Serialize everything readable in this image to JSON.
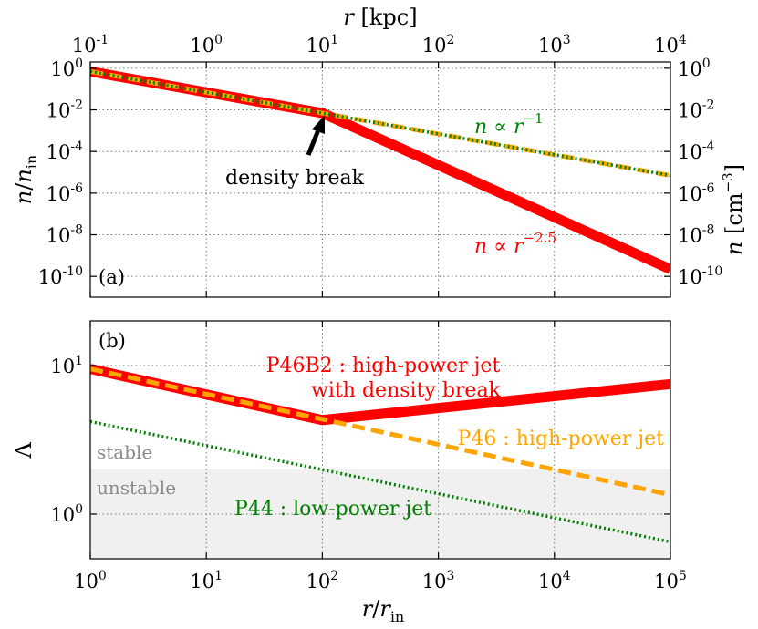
{
  "chart_data": [
    {
      "panel_label": "(a)",
      "type": "line",
      "xscale": "log",
      "yscale": "log",
      "xlim": [
        1,
        100000
      ],
      "ylim": [
        1e-11,
        2
      ],
      "xlabel": "r/r_in",
      "ylabel": "n/n_in",
      "top_xlabel": "r [kpc]",
      "right_ylabel": "n [cm^-3]",
      "x_tick_values": [
        1,
        10,
        100,
        1000,
        10000,
        100000
      ],
      "y_tick_values": [
        1,
        0.01,
        0.0001,
        1e-06,
        1e-08,
        1e-10
      ],
      "y_tick_labels": [
        {
          "base": "10",
          "exp": "0"
        },
        {
          "base": "10",
          "exp": "-2"
        },
        {
          "base": "10",
          "exp": "-4"
        },
        {
          "base": "10",
          "exp": "-6"
        },
        {
          "base": "10",
          "exp": "-8"
        },
        {
          "base": "10",
          "exp": "-10"
        }
      ],
      "top_x_tick_values": [
        0.1,
        1,
        10,
        100,
        1000,
        10000
      ],
      "top_x_tick_labels": [
        {
          "base": "10",
          "exp": "-1"
        },
        {
          "base": "10",
          "exp": "0"
        },
        {
          "base": "10",
          "exp": "1"
        },
        {
          "base": "10",
          "exp": "2"
        },
        {
          "base": "10",
          "exp": "3"
        },
        {
          "base": "10",
          "exp": "4"
        }
      ],
      "right_y_tick_labels": [
        {
          "base": "10",
          "exp": "0"
        },
        {
          "base": "10",
          "exp": "-2"
        },
        {
          "base": "10",
          "exp": "-4"
        },
        {
          "base": "10",
          "exp": "-6"
        },
        {
          "base": "10",
          "exp": "-8"
        },
        {
          "base": "10",
          "exp": "-10"
        }
      ],
      "series": [
        {
          "name": "density with break",
          "color": "#ff0000",
          "style": "solid-thick",
          "x": [
            1,
            100,
            100000
          ],
          "y": [
            0.7,
            0.007,
            2.2e-10
          ]
        },
        {
          "name": "n ∝ r^-1 (orange)",
          "color": "#ffa500",
          "style": "dashed",
          "x": [
            1,
            100000
          ],
          "y": [
            0.7,
            7e-06
          ]
        },
        {
          "name": "n ∝ r^-1 (green)",
          "color": "#008000",
          "style": "dotted",
          "x": [
            1,
            100000
          ],
          "y": [
            0.7,
            7e-06
          ]
        }
      ],
      "annotations": [
        {
          "text": "density break",
          "color": "#000000",
          "arrow_to": {
            "x": 100,
            "y": 0.007
          }
        },
        {
          "prefix": "n ∝ r",
          "exp": "−1",
          "color": "#008000"
        },
        {
          "prefix": "n ∝ r",
          "exp": "−2.5",
          "color": "#ff0000"
        }
      ]
    },
    {
      "panel_label": "(b)",
      "type": "line",
      "xscale": "log",
      "yscale": "log",
      "xlim": [
        1,
        100000
      ],
      "ylim": [
        0.5,
        20
      ],
      "xlabel": "r/r_in",
      "ylabel": "Λ",
      "x_tick_values": [
        1,
        10,
        100,
        1000,
        10000,
        100000
      ],
      "x_tick_labels": [
        {
          "base": "10",
          "exp": "0"
        },
        {
          "base": "10",
          "exp": "1"
        },
        {
          "base": "10",
          "exp": "2"
        },
        {
          "base": "10",
          "exp": "3"
        },
        {
          "base": "10",
          "exp": "4"
        },
        {
          "base": "10",
          "exp": "5"
        }
      ],
      "y_tick_values": [
        1,
        10
      ],
      "y_tick_labels": [
        {
          "base": "10",
          "exp": "0"
        },
        {
          "base": "10",
          "exp": "1"
        }
      ],
      "shaded_region": {
        "y_below": 2,
        "color": "#f0f0f0"
      },
      "region_labels": [
        "stable",
        "unstable"
      ],
      "series": [
        {
          "name": "P46B2 : high-power jet with density break",
          "color": "#ff0000",
          "style": "solid-thick",
          "x": [
            1,
            100,
            100000
          ],
          "y": [
            9.5,
            4.3,
            7.5
          ]
        },
        {
          "name": "P46 : high-power jet",
          "color": "#ffa500",
          "style": "dashed",
          "x": [
            1,
            100000
          ],
          "y": [
            9.5,
            1.35
          ]
        },
        {
          "name": "P44 : low-power jet",
          "color": "#008000",
          "style": "dotted",
          "x": [
            1,
            100000
          ],
          "y": [
            4.2,
            0.65
          ]
        }
      ],
      "annotations": [
        {
          "text": "P46B2 : high-power jet",
          "color": "#ff0000"
        },
        {
          "text": "with density break",
          "color": "#ff0000"
        },
        {
          "text": "P46 : high-power jet",
          "color": "#ffa500"
        },
        {
          "text": "P44 : low-power jet",
          "color": "#008000"
        }
      ]
    }
  ]
}
